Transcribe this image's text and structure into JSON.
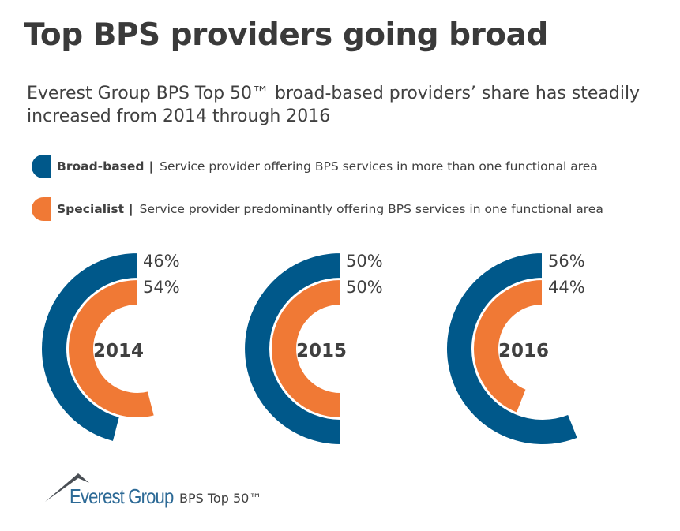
{
  "title": "Top BPS providers going broad",
  "subtitle": "Everest Group BPS Top 50™ broad-based providers’ share has steadily increased from 2014 through 2016",
  "legend": [
    {
      "label": "Broad-based",
      "separator": "|",
      "description": "Service provider offering BPS services in more than one functional area",
      "color": "#00588a"
    },
    {
      "label": "Specialist",
      "separator": "|",
      "description": "Service provider predominantly offering BPS services in one functional area",
      "color": "#f07935"
    }
  ],
  "chart_data": {
    "type": "radial-bar",
    "categories": [
      "2014",
      "2015",
      "2016"
    ],
    "series": [
      {
        "name": "Broad-based",
        "values": [
          46,
          50,
          56
        ],
        "labels": [
          "46%",
          "50%",
          "56%"
        ],
        "color": "#00588a"
      },
      {
        "name": "Specialist",
        "values": [
          54,
          50,
          44
        ],
        "labels": [
          "54%",
          "50%",
          "44%"
        ],
        "color": "#f07935"
      }
    ],
    "unit": "%"
  },
  "logo": {
    "brand": "Everest Group",
    "product": "BPS Top 50™"
  }
}
